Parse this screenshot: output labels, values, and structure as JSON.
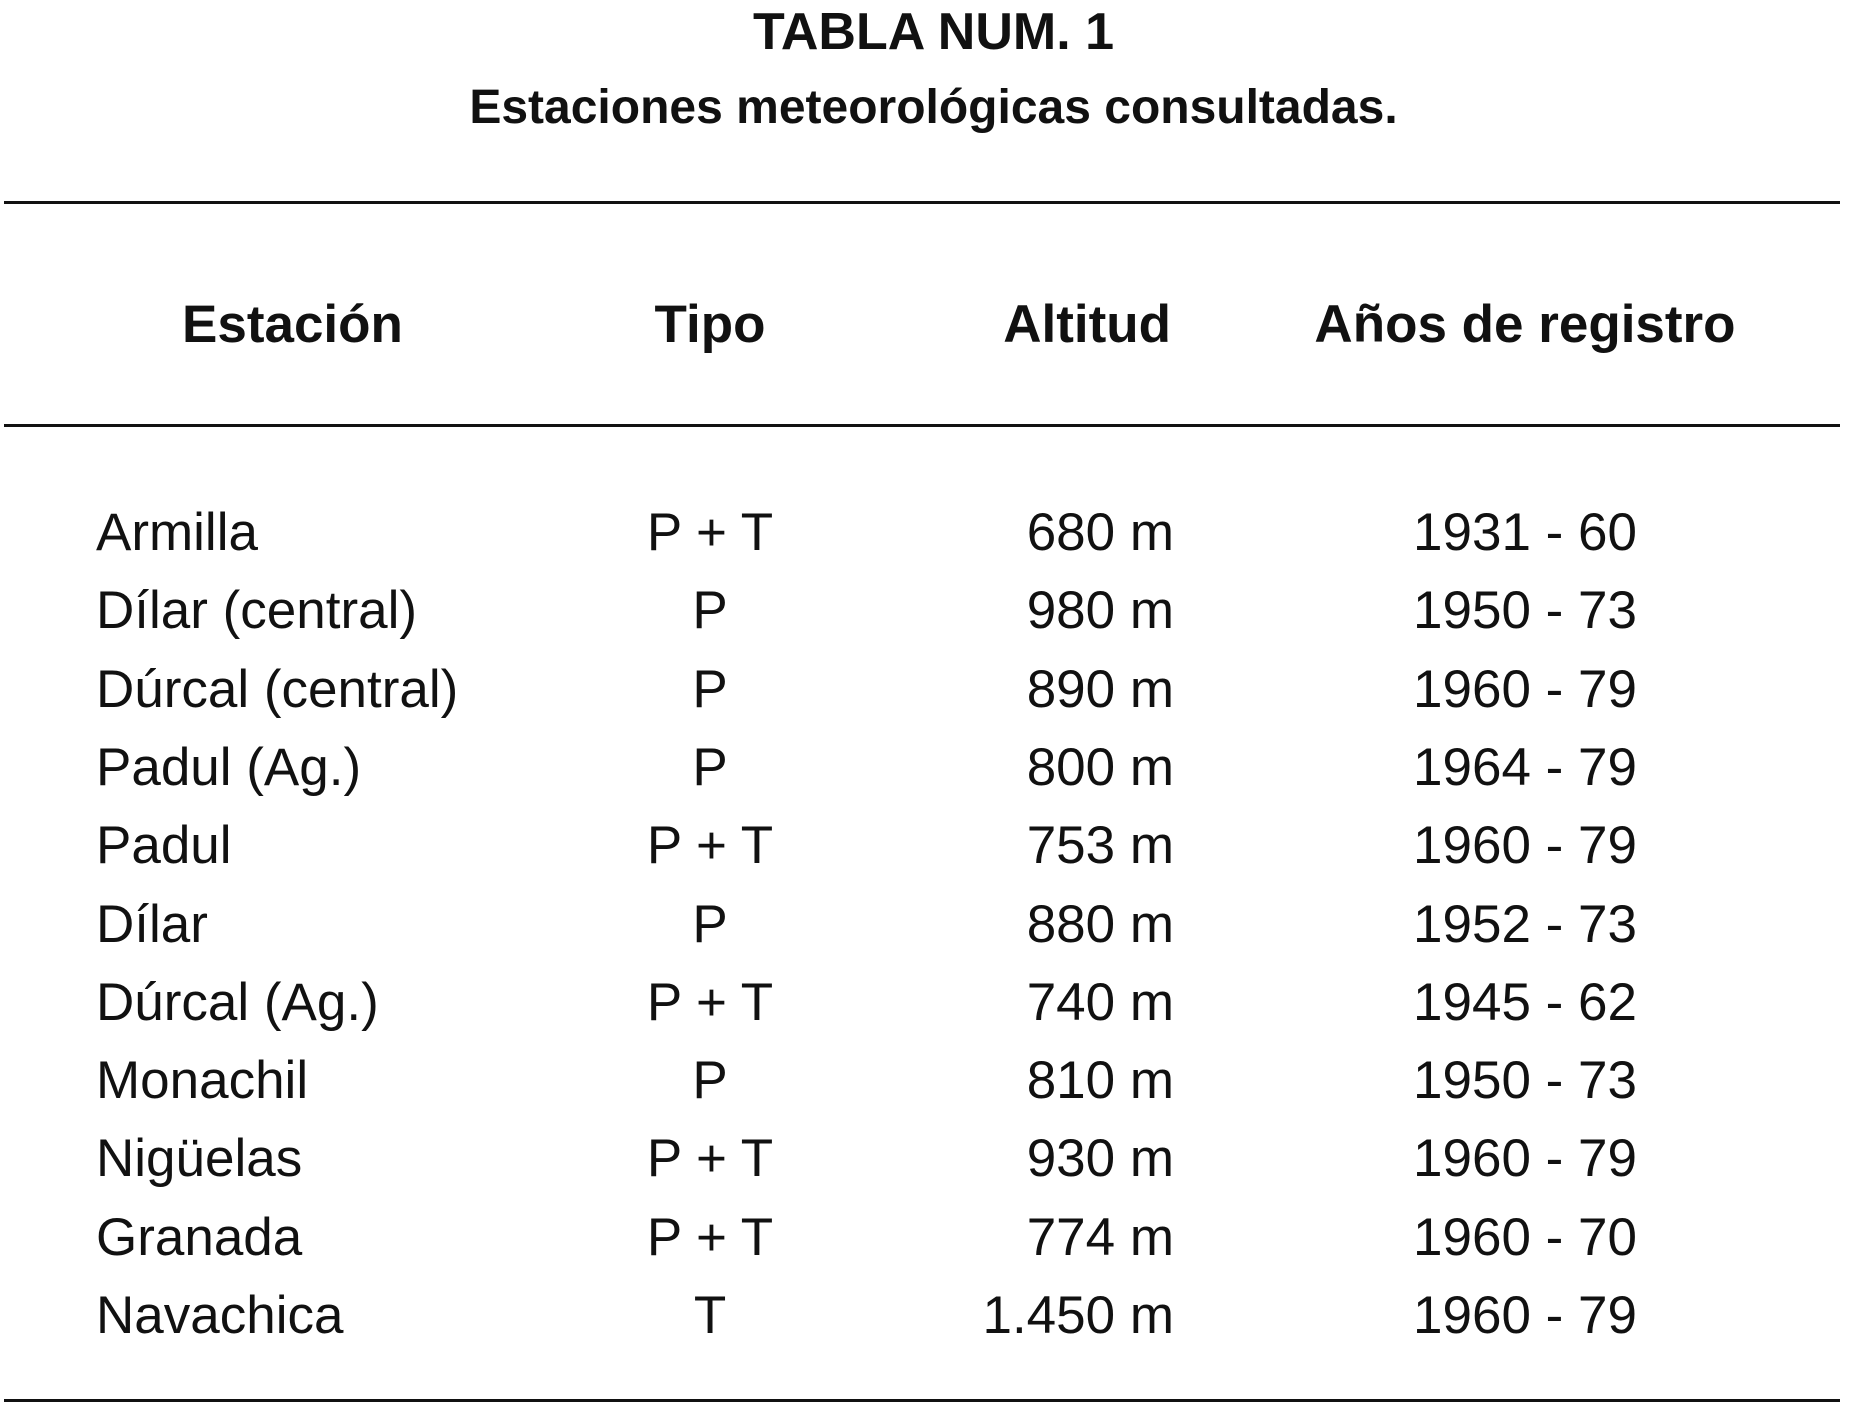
{
  "title": "TABLA NUM. 1",
  "subtitle": "Estaciones meteorológicas consultadas.",
  "columns": [
    "Estación",
    "Tipo",
    "Altitud",
    "Años de registro"
  ],
  "rows": [
    [
      "Armilla",
      "P + T",
      "680 m",
      "1931 - 60"
    ],
    [
      "Dílar (central)",
      "P",
      "980 m",
      "1950 - 73"
    ],
    [
      "Dúrcal (central)",
      "P",
      "890 m",
      "1960 - 79"
    ],
    [
      "Padul (Ag.)",
      "P",
      "800 m",
      "1964 - 79"
    ],
    [
      "Padul",
      "P + T",
      "753 m",
      "1960 - 79"
    ],
    [
      "Dílar",
      "P",
      "880 m",
      "1952 - 73"
    ],
    [
      "Dúrcal (Ag.)",
      "P + T",
      "740 m",
      "1945 - 62"
    ],
    [
      "Monachil",
      "P",
      "810 m",
      "1950 - 73"
    ],
    [
      "Nigüelas",
      "P + T",
      "930 m",
      "1960 - 79"
    ],
    [
      "Granada",
      "P + T",
      "774 m",
      "1960 - 70"
    ],
    [
      "Navachica",
      "T",
      "1.450 m",
      "1960 - 79"
    ]
  ]
}
